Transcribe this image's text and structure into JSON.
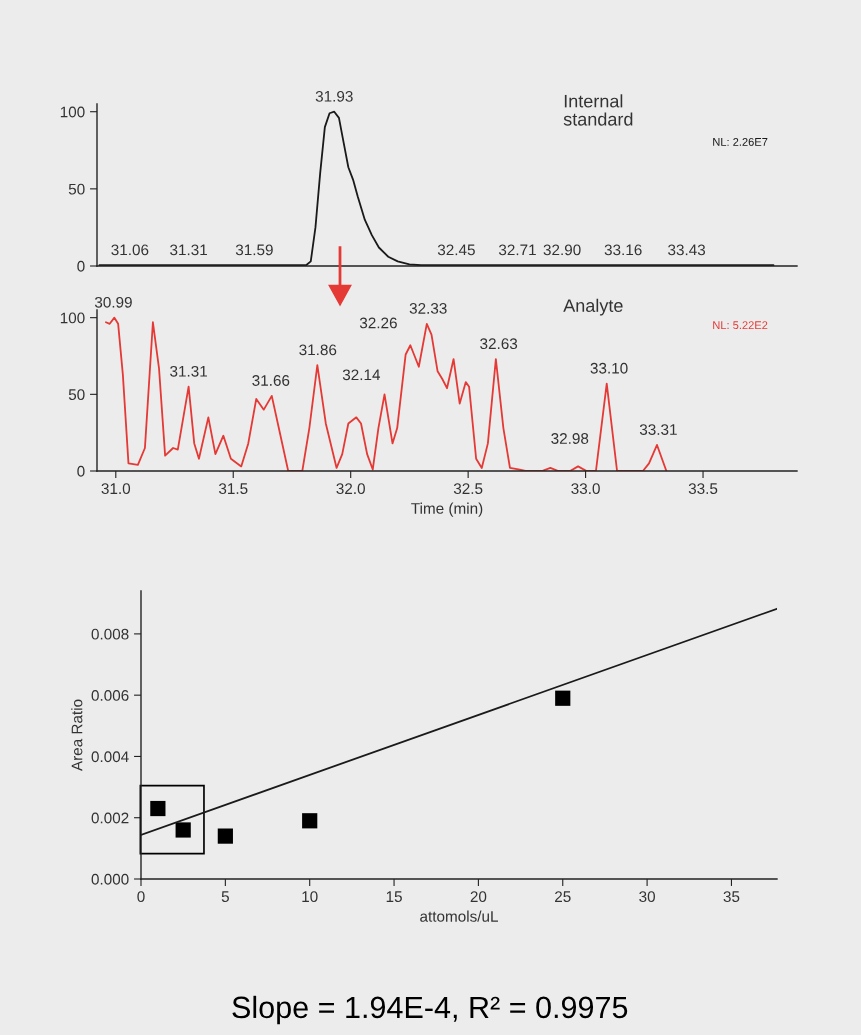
{
  "chart_data": [
    {
      "type": "line",
      "xlim": [
        30.92,
        33.9
      ],
      "ylim": [
        0,
        105
      ],
      "yticks": [
        0,
        50,
        100
      ],
      "tick_labels": "y",
      "series": [
        {
          "color": "#1a1a1a",
          "x": [
            30.93,
            31.06,
            31.31,
            31.59,
            31.81,
            31.83,
            31.85,
            31.87,
            31.89,
            31.91,
            31.93,
            31.95,
            31.97,
            31.99,
            32.01,
            32.03,
            32.06,
            32.09,
            32.12,
            32.16,
            32.2,
            32.25,
            32.3,
            32.45,
            32.71,
            32.9,
            33.16,
            33.43,
            33.8
          ],
          "values": [
            0.5,
            0.5,
            0.5,
            0.5,
            0.5,
            3,
            25,
            60,
            90,
            99,
            100,
            96,
            80,
            64,
            56,
            45,
            30,
            20,
            12,
            6,
            3,
            1,
            0.5,
            0.5,
            0.5,
            0.5,
            0.5,
            0.5,
            0.5
          ]
        }
      ],
      "annotations": [
        "Internal\nstandard",
        "NL: 2.26E7",
        {
          "text": "31.06",
          "x": 31.06,
          "y": 0.5
        },
        {
          "text": "31.31",
          "x": 31.31,
          "y": 0.5
        },
        {
          "text": "31.59",
          "x": 31.59,
          "y": 0.5
        },
        {
          "text": "31.93",
          "x": 31.93,
          "y": 100
        },
        {
          "text": "32.45",
          "x": 32.45,
          "y": 0.5
        },
        {
          "text": "32.71",
          "x": 32.71,
          "y": 0.5
        },
        {
          "text": "32.90",
          "x": 32.9,
          "y": 0.5
        },
        {
          "text": "33.16",
          "x": 33.16,
          "y": 0.5
        },
        {
          "text": "33.43",
          "x": 33.43,
          "y": 0.5
        }
      ]
    },
    {
      "type": "line",
      "xlim": [
        30.92,
        33.9
      ],
      "ylim": [
        0,
        105
      ],
      "yticks": [
        0,
        50,
        100
      ],
      "xlabel": "Time (min)",
      "xticks": [
        {
          "value": 31,
          "label": "31.0"
        },
        {
          "value": 31.5,
          "label": "31.5"
        },
        {
          "value": 32,
          "label": "32.0"
        },
        {
          "value": 32.5,
          "label": "32.5"
        },
        {
          "value": 33,
          "label": "33.0"
        },
        {
          "value": 33.5,
          "label": "33.5"
        }
      ],
      "series": [
        {
          "color": "#e53935",
          "x": [
            30.958,
            30.974,
            30.994,
            31.01,
            31.03,
            31.054,
            31.094,
            31.124,
            31.158,
            31.184,
            31.21,
            31.244,
            31.264,
            31.31,
            31.334,
            31.354,
            31.394,
            31.424,
            31.458,
            31.49,
            31.534,
            31.564,
            31.598,
            31.63,
            31.664,
            31.694,
            31.734,
            31.794,
            31.824,
            31.858,
            31.894,
            31.94,
            31.964,
            31.99,
            32.024,
            32.044,
            32.07,
            32.094,
            32.118,
            32.144,
            32.178,
            32.198,
            32.234,
            32.254,
            32.29,
            32.324,
            32.344,
            32.37,
            32.39,
            32.41,
            32.438,
            32.464,
            32.49,
            32.504,
            32.534,
            32.558,
            32.584,
            32.618,
            32.65,
            32.678,
            32.714,
            32.744,
            32.814,
            32.85,
            32.884,
            32.934,
            32.968,
            33.004,
            33.044,
            33.09,
            33.134,
            33.244,
            33.27,
            33.304,
            33.344
          ],
          "values": [
            97,
            96,
            100,
            96,
            63,
            5,
            4,
            15,
            97,
            67,
            10,
            15,
            14,
            55,
            18,
            8,
            35,
            11,
            23,
            8,
            3,
            18,
            47,
            40,
            49,
            28,
            0,
            0,
            28,
            69,
            31,
            2,
            11,
            31,
            35,
            31,
            11,
            1,
            28,
            50,
            18,
            28,
            76,
            82,
            68,
            96,
            89,
            65,
            60,
            54,
            73,
            44,
            58,
            55,
            8,
            2,
            18,
            73,
            28,
            2,
            1,
            0,
            0,
            2,
            0,
            0,
            3,
            0,
            0,
            57,
            0,
            0,
            5,
            17,
            0
          ]
        }
      ],
      "annotations": [
        "Analyte",
        "NL: 5.22E2",
        {
          "text": "30.99",
          "x": 30.99,
          "y": 100
        },
        {
          "text": "31.31",
          "x": 31.31,
          "y": 55
        },
        {
          "text": "31.66",
          "x": 31.66,
          "y": 49
        },
        {
          "text": "31.86",
          "x": 31.86,
          "y": 69
        },
        {
          "text": "32.14",
          "x": 32.14,
          "y": 50
        },
        {
          "text": "32.26",
          "x": 32.26,
          "y": 82
        },
        {
          "text": "32.33",
          "x": 32.33,
          "y": 96
        },
        {
          "text": "32.63",
          "x": 32.63,
          "y": 73
        },
        {
          "text": "32.98",
          "x": 32.98,
          "y": 3
        },
        {
          "text": "33.10",
          "x": 33.1,
          "y": 57
        },
        {
          "text": "33.31",
          "x": 33.31,
          "y": 17
        }
      ]
    },
    {
      "type": "scatter",
      "xlim": [
        0,
        37.7
      ],
      "ylim": [
        0,
        0.0094
      ],
      "xlabel": "attomols/uL",
      "ylabel": "Area Ratio",
      "xticks": [
        0,
        5,
        10,
        15,
        20,
        25,
        30,
        35
      ],
      "yticks": [
        {
          "value": 0,
          "label": "0.000"
        },
        {
          "value": 0.002,
          "label": "0.002"
        },
        {
          "value": 0.004,
          "label": "0.004"
        },
        {
          "value": 0.006,
          "label": "0.006"
        },
        {
          "value": 0.008,
          "label": "0.008"
        }
      ],
      "series": [
        {
          "type": "scatter",
          "marker": "square",
          "color": "#000000",
          "x": [
            1,
            2.5,
            5,
            10,
            25
          ],
          "values": [
            0.0023,
            0.0016,
            0.0014,
            0.0019,
            0.0059
          ]
        },
        {
          "type": "line",
          "color": "#1a1a1a",
          "x": [
            0,
            37.7
          ],
          "values": [
            0.00144,
            0.00882
          ]
        }
      ],
      "annotations": [
        "Slope = 1.94E-4, R² = 0.9975"
      ]
    }
  ]
}
